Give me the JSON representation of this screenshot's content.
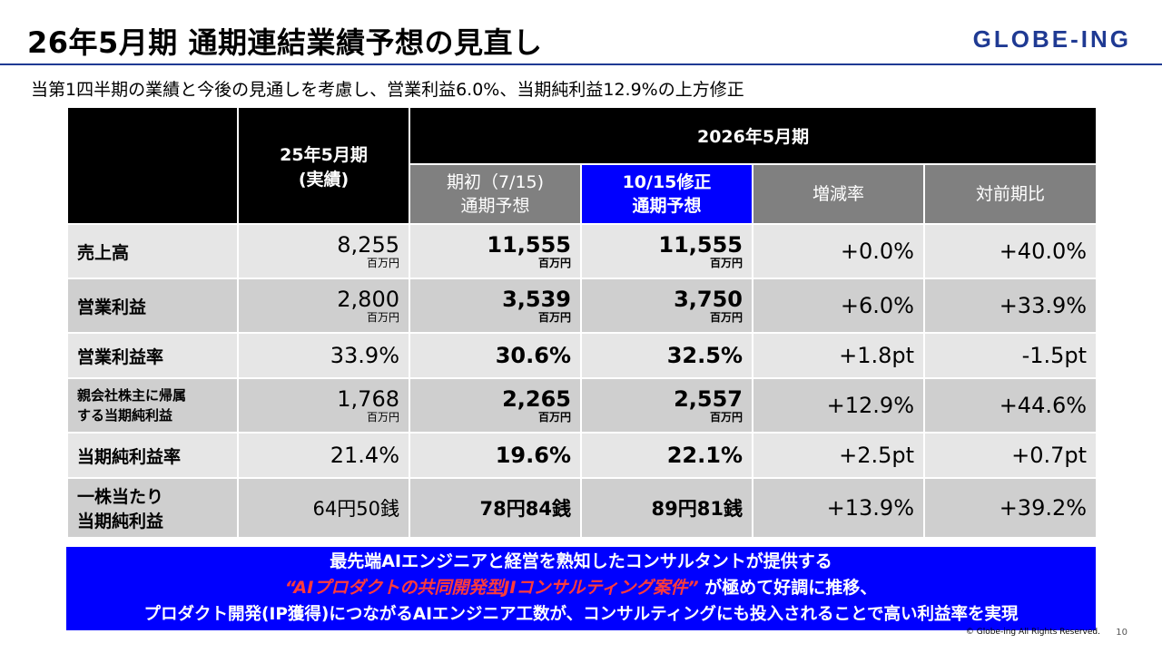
{
  "header": {
    "title": "26年5月期 通期連結業績予想の見直し",
    "logo": "GLOBE-ING",
    "subtitle": "当第1四半期の業績と今後の見通しを考慮し、営業利益6.0%、当期純利益12.9%の上方修正"
  },
  "table": {
    "prev_header": "25年5月期",
    "prev_sub": "(実績)",
    "fy_header": "2026年5月期",
    "col_initial_1": "期初（7/15)",
    "col_initial_2": "通期予想",
    "col_revised_1": "10/15修正",
    "col_revised_2": "通期予想",
    "col_change": "増減率",
    "col_yoy": "対前期比",
    "unit": "百万円",
    "rows": [
      {
        "label": "売上高",
        "prev": "8,255",
        "initial": "11,555",
        "revised": "11,555",
        "change": "+0.0%",
        "yoy": "+40.0%"
      },
      {
        "label": "営業利益",
        "prev": "2,800",
        "initial": "3,539",
        "revised": "3,750",
        "change": "+6.0%",
        "yoy": "+33.9%"
      },
      {
        "label": "営業利益率",
        "prev": "33.9%",
        "initial": "30.6%",
        "revised": "32.5%",
        "change": "+1.8pt",
        "yoy": "-1.5pt"
      },
      {
        "label1": "親会社株主に帰属",
        "label2": "する当期純利益",
        "prev": "1,768",
        "initial": "2,265",
        "revised": "2,557",
        "change": "+12.9%",
        "yoy": "+44.6%"
      },
      {
        "label": "当期純利益率",
        "prev": "21.4%",
        "initial": "19.6%",
        "revised": "22.1%",
        "change": "+2.5pt",
        "yoy": "+0.7pt"
      },
      {
        "label1": "一株当たり",
        "label2": "当期純利益",
        "prev": "64円50銭",
        "initial": "78円84銭",
        "revised": "89円81銭",
        "change": "+13.9%",
        "yoy": "+39.2%"
      }
    ]
  },
  "banner": {
    "line1": "最先端AIエンジニアと経営を熟知したコンサルタントが提供する",
    "line2_red": "“AIプロダクトの共同開発型JIコンサルティング案件”",
    "line2_rest": "が極めて好調に推移、",
    "line3": "プロダクト開発(IP獲得)につながるAIエンジニア工数が、コンサルティングにも投入されることで高い利益率を実現"
  },
  "footer": {
    "copyright": "© Globe-ing All Rights Reserved.",
    "page": "10"
  },
  "colors": {
    "brand": "#1f3a93",
    "banner": "#0000ff",
    "highlight_red": "#ff3b3b"
  }
}
